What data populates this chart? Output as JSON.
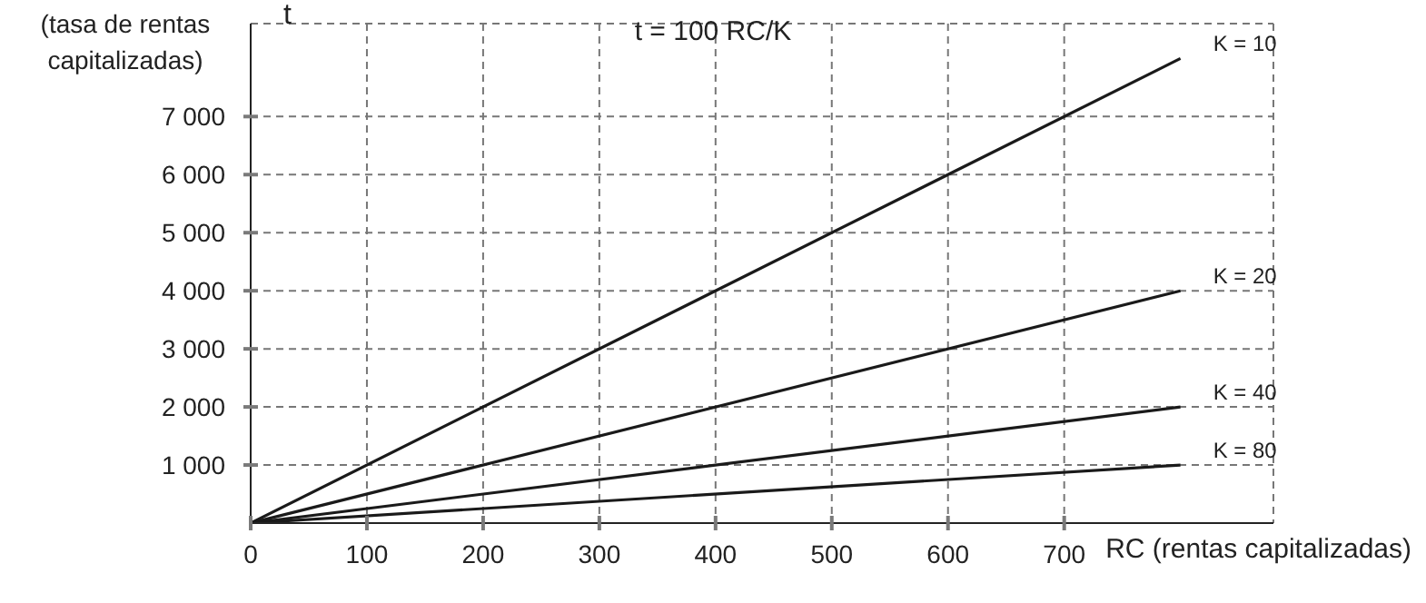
{
  "chart_data": {
    "type": "line",
    "title": "t = 100 RC/K",
    "xlabel": "RC (rentas capitalizadas)",
    "ylabel": "t",
    "annotations": [
      "(tasa de rentas capitalizadas)"
    ],
    "xlim": [
      0,
      880
    ],
    "xticks": [
      0,
      100,
      200,
      300,
      400,
      500,
      600,
      700
    ],
    "ylim": [
      0,
      8600
    ],
    "yticks": [
      {
        "value": 1000,
        "label": "1 000"
      },
      {
        "value": 2000,
        "label": "2 000"
      },
      {
        "value": 3000,
        "label": "3 000"
      },
      {
        "value": 4000,
        "label": "4 000"
      },
      {
        "value": 5000,
        "label": "5 000"
      },
      {
        "value": 6000,
        "label": "6 000"
      },
      {
        "value": 7000,
        "label": "7 000"
      }
    ],
    "grid": true,
    "legend": false,
    "marker": "none",
    "line_style": "solid",
    "x": [
      0,
      800
    ],
    "series": [
      {
        "name": "K = 10",
        "color": "#1a1a1a",
        "values": [
          0,
          8000
        ]
      },
      {
        "name": "K = 20",
        "color": "#1a1a1a",
        "values": [
          0,
          4000
        ]
      },
      {
        "name": "K = 40",
        "color": "#1a1a1a",
        "values": [
          0,
          2000
        ]
      },
      {
        "name": "K = 80",
        "color": "#1a1a1a",
        "values": [
          0,
          1000
        ]
      }
    ]
  }
}
